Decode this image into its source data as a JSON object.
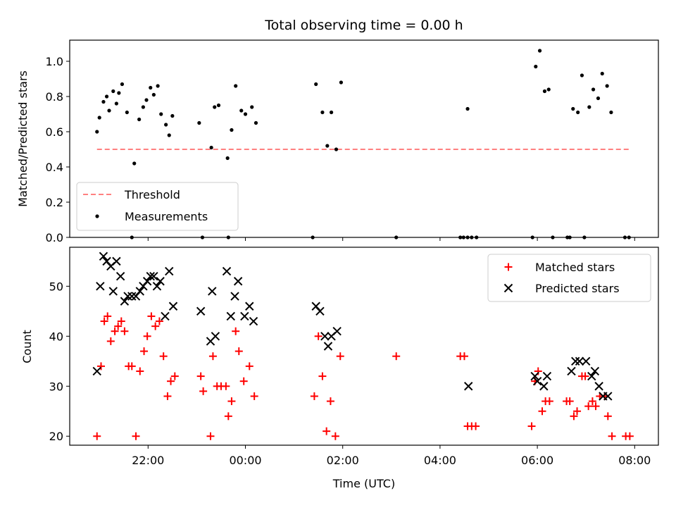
{
  "chart_data": [
    {
      "type": "scatter",
      "title": "Total observing time = 0.00 h",
      "ylabel": "Matched/Predicted stars",
      "ylim": [
        0,
        1.12
      ],
      "yticks": [
        "0.0",
        "0.2",
        "0.4",
        "0.6",
        "0.8",
        "1.0"
      ],
      "ytick_values": [
        0,
        0.2,
        0.4,
        0.6,
        0.8,
        1.0
      ],
      "legend_position": "lower-left",
      "threshold": {
        "name": "Threshold",
        "value": 0.5,
        "x_start": "20:57",
        "x_end": "07:54",
        "color": "#ff8080"
      },
      "series": [
        {
          "name": "Measurements",
          "color": "#000000",
          "points": [
            [
              "20:57",
              0.6
            ],
            [
              "21:00",
              0.68
            ],
            [
              "21:05",
              0.77
            ],
            [
              "21:09",
              0.8
            ],
            [
              "21:12",
              0.72
            ],
            [
              "21:17",
              0.83
            ],
            [
              "21:21",
              0.76
            ],
            [
              "21:24",
              0.82
            ],
            [
              "21:28",
              0.87
            ],
            [
              "21:34",
              0.71
            ],
            [
              "21:43",
              0.42
            ],
            [
              "21:49",
              0.67
            ],
            [
              "21:54",
              0.74
            ],
            [
              "21:58",
              0.78
            ],
            [
              "22:03",
              0.85
            ],
            [
              "22:07",
              0.81
            ],
            [
              "22:12",
              0.86
            ],
            [
              "22:16",
              0.7
            ],
            [
              "22:22",
              0.64
            ],
            [
              "22:26",
              0.58
            ],
            [
              "22:30",
              0.69
            ],
            [
              "23:03",
              0.65
            ],
            [
              "23:18",
              0.51
            ],
            [
              "23:22",
              0.74
            ],
            [
              "23:27",
              0.75
            ],
            [
              "23:38",
              0.45
            ],
            [
              "23:43",
              0.61
            ],
            [
              "23:48",
              0.86
            ],
            [
              "23:55",
              0.72
            ],
            [
              "00:00",
              0.7
            ],
            [
              "00:08",
              0.74
            ],
            [
              "00:13",
              0.65
            ],
            [
              "01:27",
              0.87
            ],
            [
              "01:35",
              0.71
            ],
            [
              "01:41",
              0.52
            ],
            [
              "01:46",
              0.71
            ],
            [
              "01:52",
              0.5
            ],
            [
              "01:58",
              0.88
            ],
            [
              "04:34",
              0.73
            ],
            [
              "05:58",
              0.97
            ],
            [
              "06:03",
              1.06
            ],
            [
              "06:09",
              0.83
            ],
            [
              "06:14",
              0.84
            ],
            [
              "06:44",
              0.73
            ],
            [
              "06:50",
              0.71
            ],
            [
              "06:55",
              0.92
            ],
            [
              "07:04",
              0.74
            ],
            [
              "07:09",
              0.84
            ],
            [
              "07:15",
              0.79
            ],
            [
              "07:20",
              0.93
            ],
            [
              "07:26",
              0.86
            ],
            [
              "07:31",
              0.71
            ],
            [
              "21:40",
              0.0
            ],
            [
              "23:07",
              0.0
            ],
            [
              "23:39",
              0.0
            ],
            [
              "01:23",
              0.0
            ],
            [
              "03:06",
              0.0
            ],
            [
              "04:25",
              0.0
            ],
            [
              "04:29",
              0.0
            ],
            [
              "04:34",
              0.0
            ],
            [
              "04:39",
              0.0
            ],
            [
              "04:45",
              0.0
            ],
            [
              "05:54",
              0.0
            ],
            [
              "06:19",
              0.0
            ],
            [
              "06:37",
              0.0
            ],
            [
              "06:40",
              0.0
            ],
            [
              "06:58",
              0.0
            ],
            [
              "07:48",
              0.0
            ],
            [
              "07:53",
              0.0
            ]
          ]
        }
      ]
    },
    {
      "type": "scatter",
      "xlabel": "Time (UTC)",
      "ylabel": "Count",
      "ylim": [
        18.2,
        57.8
      ],
      "yticks": [
        "20",
        "30",
        "40",
        "50"
      ],
      "ytick_values": [
        20,
        30,
        40,
        50
      ],
      "xticks": [
        "22:00",
        "00:00",
        "02:00",
        "04:00",
        "06:00",
        "08:00"
      ],
      "xtick_values": [
        "22:00",
        "00:00",
        "02:00",
        "04:00",
        "06:00",
        "08:00"
      ],
      "legend_position": "top-right",
      "series": [
        {
          "name": "Matched stars",
          "color": "#ff0000",
          "marker": "plus",
          "points": [
            [
              "20:57",
              20
            ],
            [
              "21:02",
              34
            ],
            [
              "21:06",
              43
            ],
            [
              "21:10",
              44
            ],
            [
              "21:14",
              39
            ],
            [
              "21:19",
              41
            ],
            [
              "21:23",
              42
            ],
            [
              "21:27",
              43
            ],
            [
              "21:31",
              41
            ],
            [
              "21:36",
              34
            ],
            [
              "21:40",
              34
            ],
            [
              "21:45",
              20
            ],
            [
              "21:50",
              33
            ],
            [
              "21:55",
              37
            ],
            [
              "21:59",
              40
            ],
            [
              "22:04",
              44
            ],
            [
              "22:09",
              42
            ],
            [
              "22:14",
              43
            ],
            [
              "22:19",
              36
            ],
            [
              "22:24",
              28
            ],
            [
              "22:28",
              31
            ],
            [
              "22:33",
              32
            ],
            [
              "23:05",
              32
            ],
            [
              "23:08",
              29
            ],
            [
              "23:17",
              20
            ],
            [
              "23:20",
              36
            ],
            [
              "23:25",
              30
            ],
            [
              "23:30",
              30
            ],
            [
              "23:36",
              30
            ],
            [
              "23:39",
              24
            ],
            [
              "23:43",
              27
            ],
            [
              "23:48",
              41
            ],
            [
              "23:52",
              37
            ],
            [
              "23:58",
              31
            ],
            [
              "00:05",
              34
            ],
            [
              "00:11",
              28
            ],
            [
              "01:25",
              28
            ],
            [
              "01:30",
              40
            ],
            [
              "01:35",
              32
            ],
            [
              "01:40",
              21
            ],
            [
              "01:45",
              27
            ],
            [
              "01:51",
              20
            ],
            [
              "01:57",
              36
            ],
            [
              "03:06",
              36
            ],
            [
              "04:25",
              36
            ],
            [
              "04:30",
              36
            ],
            [
              "04:34",
              22
            ],
            [
              "04:39",
              22
            ],
            [
              "04:44",
              22
            ],
            [
              "05:53",
              22
            ],
            [
              "05:57",
              31
            ],
            [
              "06:01",
              33
            ],
            [
              "06:06",
              25
            ],
            [
              "06:10",
              27
            ],
            [
              "06:15",
              27
            ],
            [
              "06:36",
              27
            ],
            [
              "06:40",
              27
            ],
            [
              "06:45",
              24
            ],
            [
              "06:49",
              25
            ],
            [
              "06:55",
              32
            ],
            [
              "06:59",
              32
            ],
            [
              "07:03",
              26
            ],
            [
              "07:08",
              27
            ],
            [
              "07:12",
              26
            ],
            [
              "07:17",
              28
            ],
            [
              "07:23",
              28
            ],
            [
              "07:27",
              24
            ],
            [
              "07:32",
              20
            ],
            [
              "07:49",
              20
            ],
            [
              "07:54",
              20
            ]
          ]
        },
        {
          "name": "Predicted stars",
          "color": "#000000",
          "marker": "x",
          "points": [
            [
              "20:57",
              33
            ],
            [
              "21:01",
              50
            ],
            [
              "21:05",
              56
            ],
            [
              "21:09",
              55
            ],
            [
              "21:14",
              54
            ],
            [
              "21:17",
              49
            ],
            [
              "21:21",
              55
            ],
            [
              "21:26",
              52
            ],
            [
              "21:31",
              47
            ],
            [
              "21:35",
              48
            ],
            [
              "21:40",
              48
            ],
            [
              "21:45",
              48
            ],
            [
              "21:50",
              49
            ],
            [
              "21:54",
              50
            ],
            [
              "21:59",
              51
            ],
            [
              "22:03",
              52
            ],
            [
              "22:07",
              52
            ],
            [
              "22:11",
              50
            ],
            [
              "22:15",
              51
            ],
            [
              "22:21",
              44
            ],
            [
              "22:26",
              53
            ],
            [
              "22:31",
              46
            ],
            [
              "23:05",
              45
            ],
            [
              "23:17",
              39
            ],
            [
              "23:19",
              49
            ],
            [
              "23:23",
              40
            ],
            [
              "23:37",
              53
            ],
            [
              "23:42",
              44
            ],
            [
              "23:47",
              48
            ],
            [
              "23:51",
              51
            ],
            [
              "23:59",
              44
            ],
            [
              "00:05",
              46
            ],
            [
              "00:10",
              43
            ],
            [
              "01:27",
              46
            ],
            [
              "01:32",
              45
            ],
            [
              "01:38",
              40
            ],
            [
              "01:42",
              38
            ],
            [
              "01:46",
              40
            ],
            [
              "01:53",
              41
            ],
            [
              "04:35",
              30
            ],
            [
              "05:57",
              32
            ],
            [
              "06:00",
              31
            ],
            [
              "06:08",
              30
            ],
            [
              "06:12",
              32
            ],
            [
              "06:42",
              33
            ],
            [
              "06:47",
              35
            ],
            [
              "06:52",
              35
            ],
            [
              "07:00",
              35
            ],
            [
              "07:07",
              32
            ],
            [
              "07:11",
              33
            ],
            [
              "07:16",
              30
            ],
            [
              "07:21",
              28
            ],
            [
              "07:27",
              28
            ]
          ]
        }
      ]
    }
  ]
}
